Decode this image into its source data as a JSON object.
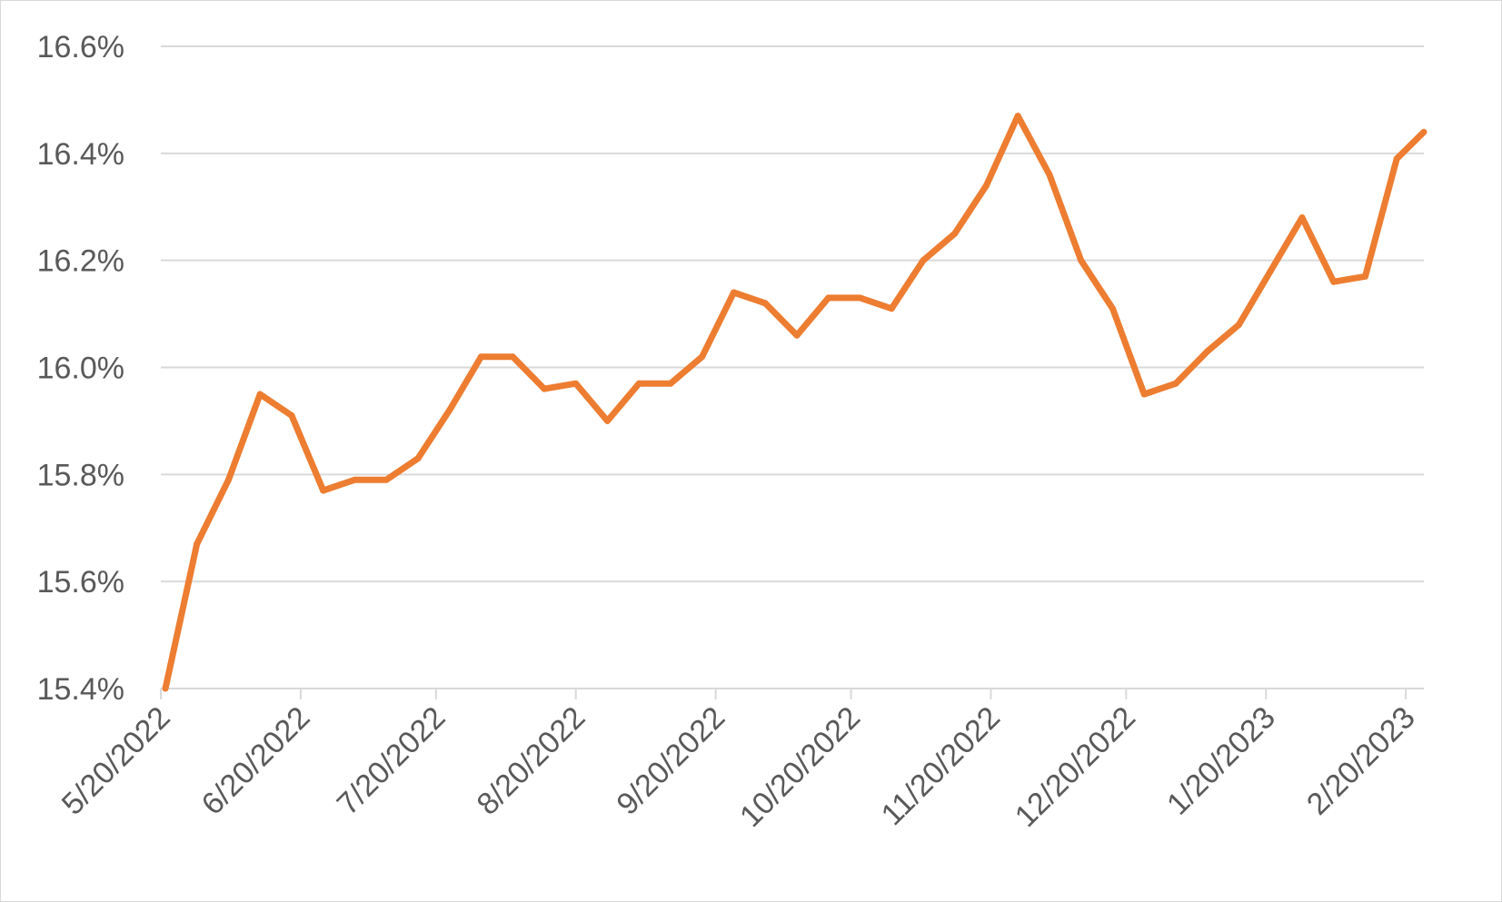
{
  "chart_data": {
    "type": "line",
    "title": "",
    "xlabel": "",
    "ylabel": "",
    "x_ticks": [
      "5/20/2022",
      "6/20/2022",
      "7/20/2022",
      "8/20/2022",
      "9/20/2022",
      "10/20/2022",
      "11/20/2022",
      "12/20/2022",
      "1/20/2023",
      "2/20/2023"
    ],
    "y_ticks": [
      "15.4%",
      "15.6%",
      "15.8%",
      "16.0%",
      "16.2%",
      "16.4%",
      "16.6%"
    ],
    "ylim": [
      15.4,
      16.6
    ],
    "xlim": [
      "2022-05-20",
      "2023-02-24"
    ],
    "grid": "horizontal",
    "legend": "none",
    "series": [
      {
        "color": "#ed7d31",
        "x": [
          "2022-05-21",
          "2022-05-28",
          "2022-06-04",
          "2022-06-11",
          "2022-06-18",
          "2022-06-25",
          "2022-07-02",
          "2022-07-09",
          "2022-07-16",
          "2022-07-23",
          "2022-07-30",
          "2022-08-06",
          "2022-08-13",
          "2022-08-20",
          "2022-08-27",
          "2022-09-03",
          "2022-09-10",
          "2022-09-17",
          "2022-09-24",
          "2022-10-01",
          "2022-10-08",
          "2022-10-15",
          "2022-10-22",
          "2022-10-29",
          "2022-11-05",
          "2022-11-12",
          "2022-11-19",
          "2022-11-26",
          "2022-12-03",
          "2022-12-10",
          "2022-12-17",
          "2022-12-24",
          "2022-12-31",
          "2023-01-07",
          "2023-01-14",
          "2023-01-21",
          "2023-01-28",
          "2023-02-04",
          "2023-02-11",
          "2023-02-18",
          "2023-02-24"
        ],
        "y": [
          15.4,
          15.67,
          15.79,
          15.95,
          15.91,
          15.77,
          15.79,
          15.79,
          15.83,
          15.92,
          16.02,
          16.02,
          15.96,
          15.97,
          15.9,
          15.97,
          15.97,
          16.02,
          16.14,
          16.12,
          16.06,
          16.13,
          16.13,
          16.11,
          16.2,
          16.25,
          16.34,
          16.47,
          16.36,
          16.2,
          16.11,
          15.95,
          15.97,
          16.03,
          16.08,
          16.18,
          16.28,
          16.16,
          16.17,
          16.39,
          16.44
        ]
      }
    ]
  }
}
